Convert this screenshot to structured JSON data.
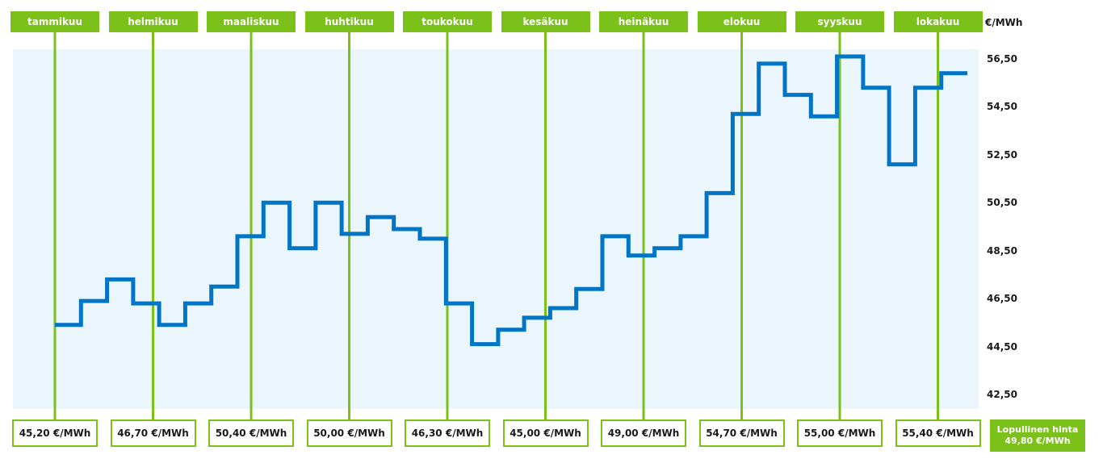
{
  "chart_data": {
    "type": "line",
    "unit_label": "€/MWh",
    "y_ticks": [
      "56,50",
      "54,50",
      "52,50",
      "50,50",
      "48,50",
      "46,50",
      "44,50",
      "42,50"
    ],
    "ylim": [
      42.0,
      57.0
    ],
    "months": [
      {
        "label": "tammikuu",
        "price": "45,20 €/MWh"
      },
      {
        "label": "helmikuu",
        "price": "46,70 €/MWh"
      },
      {
        "label": "maaliskuu",
        "price": "50,40 €/MWh"
      },
      {
        "label": "huhtikuu",
        "price": "50,00 €/MWh"
      },
      {
        "label": "toukokuu",
        "price": "46,30 €/MWh"
      },
      {
        "label": "kesäkuu",
        "price": "45,00 €/MWh"
      },
      {
        "label": "heinäkuu",
        "price": "49,00 €/MWh"
      },
      {
        "label": "elokuu",
        "price": "54,70 €/MWh"
      },
      {
        "label": "syyskuu",
        "price": "55,00 €/MWh"
      },
      {
        "label": "lokakuu",
        "price": "55,40 €/MWh"
      }
    ],
    "final": {
      "line1": "Lopullinen hinta",
      "line2": "49,80 €/MWh"
    },
    "series": [
      {
        "values": [
          45.4,
          46.4,
          47.3,
          46.3,
          45.4,
          46.3,
          47.0,
          49.1,
          50.5,
          48.6,
          50.5,
          49.2,
          49.9,
          49.4,
          49.0,
          46.3,
          44.6,
          45.2,
          45.7,
          46.1,
          46.9,
          49.1,
          48.3,
          48.6,
          49.1,
          50.9,
          54.2,
          56.3,
          55.0,
          54.1,
          56.6,
          55.3,
          52.1,
          55.3,
          55.9
        ]
      }
    ],
    "grid": false
  },
  "colors": {
    "accent": "#7bc11a",
    "line": "#0074c5",
    "plot_bg": "#eaf6fc"
  }
}
